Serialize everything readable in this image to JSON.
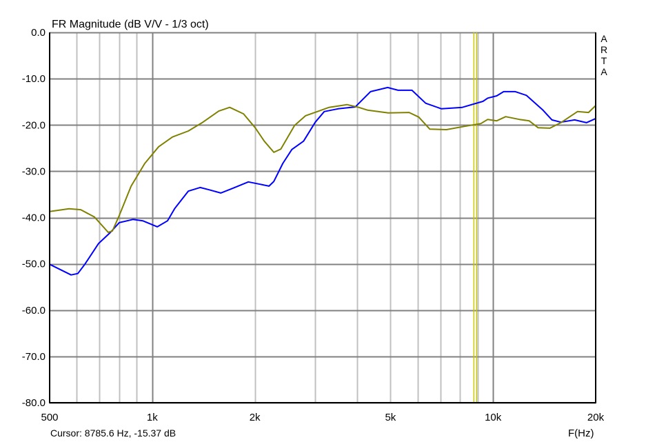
{
  "chart_data": {
    "type": "line",
    "title": "FR Magnitude (dB V/V - 1/3 oct)",
    "xlabel": "F(Hz)",
    "ylabel": "",
    "xscale": "log",
    "xlim": [
      500,
      20000
    ],
    "ylim": [
      -80,
      0
    ],
    "grid": true,
    "x_ticks": [
      {
        "value": 500,
        "label": "500"
      },
      {
        "value": 1000,
        "label": "1k"
      },
      {
        "value": 2000,
        "label": "2k"
      },
      {
        "value": 5000,
        "label": "5k"
      },
      {
        "value": 10000,
        "label": "10k"
      },
      {
        "value": 20000,
        "label": "20k"
      }
    ],
    "y_ticks": [
      {
        "value": 0,
        "label": "0.0"
      },
      {
        "value": -10,
        "label": "-10.0"
      },
      {
        "value": -20,
        "label": "-20.0"
      },
      {
        "value": -30,
        "label": "-30.0"
      },
      {
        "value": -40,
        "label": "-40.0"
      },
      {
        "value": -50,
        "label": "-50.0"
      },
      {
        "value": -60,
        "label": "-60.0"
      },
      {
        "value": -70,
        "label": "-70.0"
      },
      {
        "value": -80,
        "label": "-80.0"
      }
    ],
    "series": [
      {
        "color": "#0000ff",
        "points": [
          [
            500,
            -50.1
          ],
          [
            578,
            -52.4
          ],
          [
            605,
            -52.1
          ],
          [
            634,
            -50.1
          ],
          [
            696,
            -45.6
          ],
          [
            754,
            -43.2
          ],
          [
            800,
            -41.1
          ],
          [
            879,
            -40.4
          ],
          [
            938,
            -40.7
          ],
          [
            1035,
            -42.0
          ],
          [
            1109,
            -40.7
          ],
          [
            1163,
            -38.1
          ],
          [
            1276,
            -34.3
          ],
          [
            1382,
            -33.5
          ],
          [
            1468,
            -34.0
          ],
          [
            1589,
            -34.7
          ],
          [
            1720,
            -33.7
          ],
          [
            1914,
            -32.3
          ],
          [
            2072,
            -32.8
          ],
          [
            2201,
            -33.2
          ],
          [
            2274,
            -32.2
          ],
          [
            2416,
            -28.3
          ],
          [
            2568,
            -25.3
          ],
          [
            2779,
            -23.5
          ],
          [
            3009,
            -19.4
          ],
          [
            3196,
            -17.1
          ],
          [
            3349,
            -16.8
          ],
          [
            3509,
            -16.5
          ],
          [
            3942,
            -16.1
          ],
          [
            4369,
            -12.8
          ],
          [
            4907,
            -11.9
          ],
          [
            5264,
            -12.5
          ],
          [
            5780,
            -12.5
          ],
          [
            6342,
            -15.3
          ],
          [
            7060,
            -16.5
          ],
          [
            8121,
            -16.2
          ],
          [
            9039,
            -15.2
          ],
          [
            9339,
            -14.9
          ],
          [
            9646,
            -14.2
          ],
          [
            10250,
            -13.7
          ],
          [
            10740,
            -12.8
          ],
          [
            11626,
            -12.8
          ],
          [
            12524,
            -13.6
          ],
          [
            14010,
            -16.8
          ],
          [
            14885,
            -18.9
          ],
          [
            15810,
            -19.4
          ],
          [
            17355,
            -18.9
          ],
          [
            18786,
            -19.5
          ],
          [
            20000,
            -18.6
          ]
        ]
      },
      {
        "color": "#808000",
        "points": [
          [
            500,
            -38.7
          ],
          [
            570,
            -38.1
          ],
          [
            617,
            -38.3
          ],
          [
            677,
            -39.9
          ],
          [
            743,
            -43.2
          ],
          [
            764,
            -42.9
          ],
          [
            800,
            -39.6
          ],
          [
            867,
            -33.2
          ],
          [
            951,
            -28.3
          ],
          [
            1044,
            -24.7
          ],
          [
            1146,
            -22.6
          ],
          [
            1276,
            -21.3
          ],
          [
            1401,
            -19.5
          ],
          [
            1567,
            -17.0
          ],
          [
            1688,
            -16.2
          ],
          [
            1853,
            -17.6
          ],
          [
            2005,
            -20.6
          ],
          [
            2131,
            -23.5
          ],
          [
            2274,
            -25.9
          ],
          [
            2383,
            -25.2
          ],
          [
            2616,
            -20.1
          ],
          [
            2818,
            -18.0
          ],
          [
            3051,
            -17.1
          ],
          [
            3302,
            -16.2
          ],
          [
            3728,
            -15.6
          ],
          [
            4035,
            -16.2
          ],
          [
            4288,
            -16.8
          ],
          [
            4930,
            -17.4
          ],
          [
            5672,
            -17.3
          ],
          [
            6053,
            -18.3
          ],
          [
            6521,
            -20.9
          ],
          [
            7295,
            -21.0
          ],
          [
            8233,
            -20.3
          ],
          [
            9208,
            -19.7
          ],
          [
            9646,
            -18.8
          ],
          [
            10250,
            -19.1
          ],
          [
            10890,
            -18.2
          ],
          [
            11950,
            -18.8
          ],
          [
            12760,
            -19.1
          ],
          [
            13560,
            -20.6
          ],
          [
            14680,
            -20.7
          ],
          [
            15810,
            -19.5
          ],
          [
            17684,
            -17.1
          ],
          [
            19050,
            -17.3
          ],
          [
            20000,
            -15.8
          ]
        ]
      }
    ],
    "cursor": {
      "frequency": 8785.6,
      "color": "#c8c800"
    },
    "cursor_readout": "Cursor: 8785.6 Hz, -15.37 dB",
    "watermark": "ARTA"
  }
}
